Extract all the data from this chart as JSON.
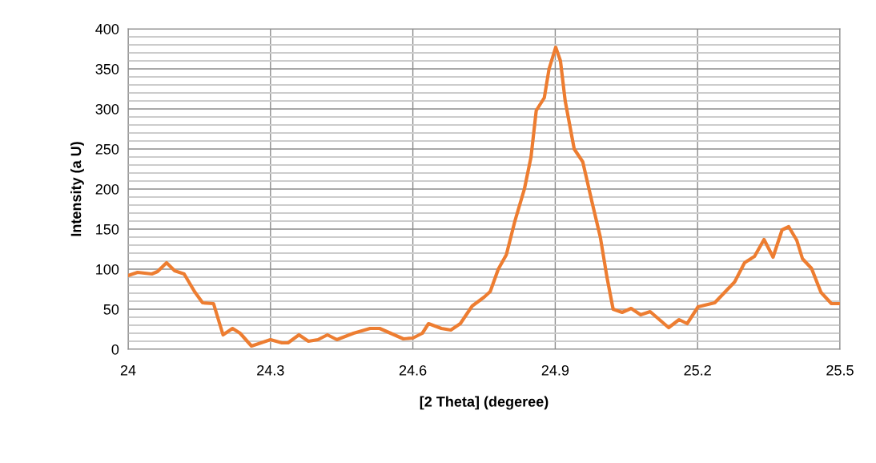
{
  "chart_data": {
    "type": "line",
    "xlabel": "[2 Theta] (degeree)",
    "ylabel": "Intensity (a U)",
    "x": [
      24.0,
      24.02,
      24.05,
      24.062,
      24.081,
      24.098,
      24.118,
      24.14,
      24.157,
      24.18,
      24.2,
      24.22,
      24.236,
      24.26,
      24.3,
      24.324,
      24.337,
      24.36,
      24.38,
      24.4,
      24.42,
      24.44,
      24.475,
      24.51,
      24.53,
      24.58,
      24.6,
      24.62,
      24.633,
      24.66,
      24.68,
      24.7,
      24.725,
      24.75,
      24.763,
      24.78,
      24.797,
      24.815,
      24.835,
      24.849,
      24.86,
      24.877,
      24.887,
      24.901,
      24.911,
      24.921,
      24.94,
      24.958,
      24.979,
      24.995,
      25.009,
      25.022,
      25.041,
      25.06,
      25.08,
      25.1,
      25.139,
      25.161,
      25.178,
      25.201,
      25.236,
      25.278,
      25.299,
      25.32,
      25.34,
      25.359,
      25.378,
      25.392,
      25.409,
      25.421,
      25.44,
      25.46,
      25.482,
      25.5
    ],
    "series": [
      {
        "color": "#ed7d31",
        "values": [
          92,
          96,
          94,
          97,
          108,
          98,
          94,
          72,
          58,
          57,
          18,
          26,
          20,
          4,
          12,
          8,
          8,
          18,
          10,
          12,
          18,
          12,
          20,
          26,
          26,
          13,
          14,
          20,
          32,
          26,
          24,
          32,
          54,
          65,
          72,
          100,
          118,
          160,
          200,
          240,
          298,
          314,
          350,
          377,
          360,
          310,
          250,
          234,
          180,
          140,
          90,
          50,
          46,
          51,
          43,
          47,
          27,
          37,
          32,
          53,
          58,
          84,
          108,
          116,
          137,
          115,
          149,
          153,
          136,
          113,
          101,
          71,
          57,
          57
        ]
      }
    ],
    "xlim": [
      24,
      25.5
    ],
    "xticks": [
      24,
      24.3,
      24.6,
      24.9,
      25.2,
      25.5
    ],
    "ylim": [
      0,
      400
    ],
    "yticks": [
      0,
      {
        "value": 10,
        "label": null
      },
      {
        "value": 20,
        "label": null
      },
      {
        "value": 30,
        "label": null
      },
      {
        "value": 40,
        "label": null
      },
      50,
      {
        "value": 60,
        "label": null
      },
      {
        "value": 70,
        "label": null
      },
      {
        "value": 80,
        "label": null
      },
      {
        "value": 90,
        "label": null
      },
      100,
      {
        "value": 110,
        "label": null
      },
      {
        "value": 120,
        "label": null
      },
      {
        "value": 130,
        "label": null
      },
      {
        "value": 140,
        "label": null
      },
      150,
      {
        "value": 160,
        "label": null
      },
      {
        "value": 170,
        "label": null
      },
      {
        "value": 180,
        "label": null
      },
      {
        "value": 190,
        "label": null
      },
      200,
      {
        "value": 210,
        "label": null
      },
      {
        "value": 220,
        "label": null
      },
      {
        "value": 230,
        "label": null
      },
      {
        "value": 240,
        "label": null
      },
      250,
      {
        "value": 260,
        "label": null
      },
      {
        "value": 270,
        "label": null
      },
      {
        "value": 280,
        "label": null
      },
      {
        "value": 290,
        "label": null
      },
      300,
      {
        "value": 310,
        "label": null
      },
      {
        "value": 320,
        "label": null
      },
      {
        "value": 330,
        "label": null
      },
      {
        "value": 340,
        "label": null
      },
      350,
      {
        "value": 360,
        "label": null
      },
      {
        "value": 370,
        "label": null
      },
      {
        "value": 380,
        "label": null
      },
      {
        "value": 390,
        "label": null
      },
      400
    ],
    "grid": true,
    "marker": "none",
    "line_style": "solid",
    "legend": false
  }
}
